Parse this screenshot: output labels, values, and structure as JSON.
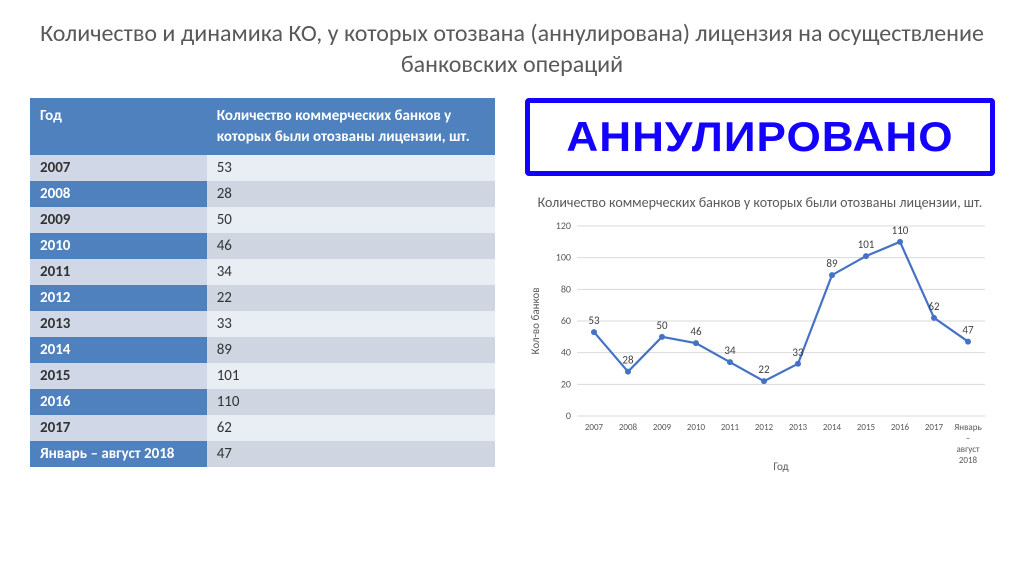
{
  "title": "Количество и динамика КО, у которых отозвана (аннулирована) лицензия на осуществление банковских операций",
  "table": {
    "columns": [
      "Год",
      "Количество коммерческих банков у которых были отозваны лицензии, шт."
    ],
    "rows": [
      [
        "2007",
        "53"
      ],
      [
        "2008",
        "28"
      ],
      [
        "2009",
        "50"
      ],
      [
        "2010",
        "46"
      ],
      [
        "2011",
        "34"
      ],
      [
        "2012",
        "22"
      ],
      [
        "2013",
        "33"
      ],
      [
        "2014",
        "89"
      ],
      [
        "2015",
        "101"
      ],
      [
        "2016",
        "110"
      ],
      [
        "2017",
        "62"
      ],
      [
        "Январь – август 2018",
        "47"
      ]
    ],
    "header_bg": "#4e81bd",
    "header_fg": "#ffffff",
    "row_even_col0_bg": "#d0d8e7",
    "row_even_col1_bg": "#e9edf4",
    "row_odd_col0_bg": "#4e81bd",
    "row_odd_col1_bg": "#cfd5e1"
  },
  "stamp": {
    "text": "АННУЛИРОВАНО",
    "border_color": "#1400ff",
    "text_color": "#1400ff"
  },
  "chart": {
    "type": "line",
    "title": "Количество коммерческих банков у которых были отозваны лицензии, шт.",
    "y_axis_label": "Кол-во банков",
    "x_axis_label": "Год",
    "categories": [
      "2007",
      "2008",
      "2009",
      "2010",
      "2011",
      "2012",
      "2013",
      "2014",
      "2015",
      "2016",
      "2017",
      "Январь – август 2018"
    ],
    "values": [
      53,
      28,
      50,
      46,
      34,
      22,
      33,
      89,
      101,
      110,
      62,
      47
    ],
    "ylim": [
      0,
      120
    ],
    "ytick_step": 20,
    "line_color": "#4472c4",
    "marker_color": "#4472c4",
    "marker_style": "circle",
    "marker_size": 3,
    "line_width": 2.2,
    "grid_color": "#d9d9d9",
    "background_color": "#ffffff",
    "label_fontsize": 10,
    "title_fontsize": 14
  }
}
